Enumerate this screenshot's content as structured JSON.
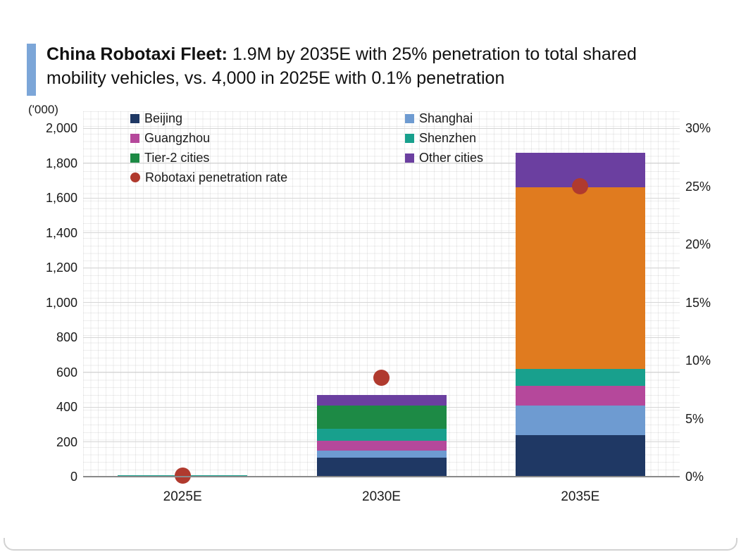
{
  "header": {
    "title_bold": "China Robotaxi Fleet:",
    "title_rest": " 1.9M by 2035E with 25% penetration to total shared mobility vehicles, vs. 4,000 in 2025E with 0.1% penetration",
    "accent_color": "#7ca6d8"
  },
  "chart_data": {
    "type": "bar",
    "subtype": "stacked-bars-with-penetration-rate-points",
    "unit_label": "('000)",
    "categories": [
      "2025E",
      "2030E",
      "2035E"
    ],
    "series": [
      {
        "name": "Beijing",
        "color": "#1f3864",
        "values": [
          2,
          110,
          240
        ]
      },
      {
        "name": "Shanghai",
        "color": "#6e9bd1",
        "values": [
          1,
          40,
          170
        ]
      },
      {
        "name": "Guangzhou",
        "color": "#b5489b",
        "values": [
          0.5,
          55,
          110
        ]
      },
      {
        "name": "Shenzhen",
        "color": "#18a08d",
        "values": [
          0.5,
          70,
          100
        ]
      },
      {
        "name": "Tier-2 cities",
        "color": "#1d8a45",
        "segment_colors": [
          "#1d8a45",
          "#1d8a45",
          "#e07b1f"
        ],
        "values": [
          0,
          135,
          1040
        ]
      },
      {
        "name": "Other cities",
        "color": "#6b3fa0",
        "values": [
          0,
          60,
          200
        ]
      }
    ],
    "bar_totals": [
      4,
      470,
      1860
    ],
    "points_series": {
      "name": "Robotaxi penetration rate",
      "color": "#b03a2e",
      "values_pct": [
        0.1,
        8.5,
        25
      ]
    },
    "left_axis": {
      "min": 0,
      "max": 2000,
      "step": 200,
      "tick_labels": [
        "0",
        "200",
        "400",
        "600",
        "800",
        "1,000",
        "1,200",
        "1,400",
        "1,600",
        "1,800",
        "2,000"
      ]
    },
    "right_axis": {
      "min": 0,
      "max": 30,
      "step": 5,
      "tick_labels": [
        "0%",
        "5%",
        "10%",
        "15%",
        "20%",
        "25%",
        "30%"
      ]
    },
    "legend": {
      "columns": [
        [
          "Beijing",
          "Guangzhou",
          "Tier-2 cities",
          "Robotaxi penetration rate"
        ],
        [
          "Shanghai",
          "Shenzhen",
          "Other cities"
        ]
      ]
    },
    "grid": true
  }
}
